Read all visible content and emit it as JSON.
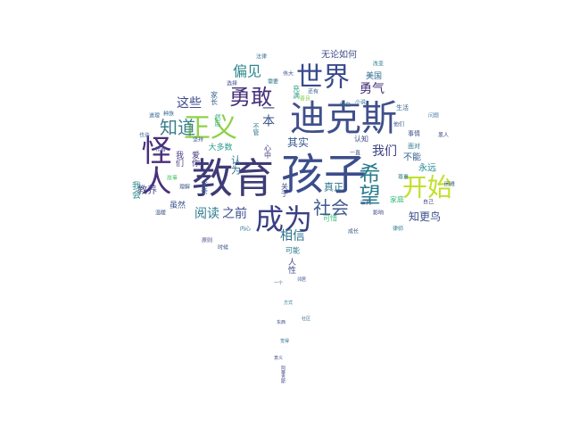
{
  "words": [
    {
      "text": "孩子",
      "color": "#3b4d8b"
    },
    {
      "text": "教育",
      "color": "#3e3b77"
    },
    {
      "text": "迪克斯",
      "color": "#404f8c"
    },
    {
      "text": "成为",
      "color": "#3a3f84"
    },
    {
      "text": "世界",
      "color": "#3a4a8d"
    },
    {
      "text": "勇敢",
      "color": "#46307a"
    },
    {
      "text": "正义",
      "color": "#8fd24a"
    },
    {
      "text": "怪人",
      "color": "#4a2f7b"
    },
    {
      "text": "开始",
      "color": "#c2df2b"
    },
    {
      "text": "希望",
      "color": "#2b7d8e"
    },
    {
      "text": "社会",
      "color": "#3f5a8e"
    },
    {
      "text": "知道",
      "color": "#3a7f8e"
    },
    {
      "text": "偏见",
      "color": "#2c868e"
    },
    {
      "text": "这些",
      "color": "#3e4989"
    },
    {
      "text": "勇气",
      "color": "#44307c"
    },
    {
      "text": "一本",
      "color": "#3b5289"
    },
    {
      "text": "相信",
      "color": "#2d708e"
    },
    {
      "text": "阅读",
      "color": "#2b7a8e"
    },
    {
      "text": "之前",
      "color": "#3c4f8c"
    },
    {
      "text": "我们",
      "color": "#3d3f7f"
    },
    {
      "text": "其实",
      "color": "#38598c"
    },
    {
      "text": "知更鸟",
      "color": "#3b528b"
    },
    {
      "text": "真正",
      "color": "#2c738e"
    },
    {
      "text": "教养",
      "color": "#414287"
    },
    {
      "text": "认为",
      "color": "#2e6e8e"
    },
    {
      "text": "不能",
      "color": "#36618d"
    },
    {
      "text": "永远",
      "color": "#23898e"
    },
    {
      "text": "无论如何",
      "color": "#414f8a"
    },
    {
      "text": "美国",
      "color": "#2f6b8e"
    },
    {
      "text": "虽然",
      "color": "#3b528b"
    },
    {
      "text": "可能",
      "color": "#29798e"
    },
    {
      "text": "人性",
      "color": "#3e4a89"
    },
    {
      "text": "家长",
      "color": "#36618d"
    },
    {
      "text": "大多数",
      "color": "#2a9c8a"
    },
    {
      "text": "我会",
      "color": "#2c8f8b"
    },
    {
      "text": "关于",
      "color": "#3e4c8a"
    },
    {
      "text": "认知",
      "color": "#3e4989"
    },
    {
      "text": "面对",
      "color": "#2a7b8e"
    },
    {
      "text": "我们",
      "color": "#433e85"
    },
    {
      "text": "爱你",
      "color": "#45357d"
    },
    {
      "text": "父亲",
      "color": "#3b5f8c"
    },
    {
      "text": "可惜",
      "color": "#3cbc74"
    },
    {
      "text": "家庭",
      "color": "#34b679"
    },
    {
      "text": "充满",
      "color": "#2e9e88"
    },
    {
      "text": "然后",
      "color": "#28ae80"
    },
    {
      "text": "不管",
      "color": "#2a768e"
    },
    {
      "text": "心中",
      "color": "#44397f"
    },
    {
      "text": "事情",
      "color": "#3b528b"
    },
    {
      "text": "生活",
      "color": "#33638d"
    },
    {
      "text": "作者",
      "color": "#3b528b"
    },
    {
      "text": "故事",
      "color": "#4fc369"
    },
    {
      "text": "小说",
      "color": "#2c718e"
    },
    {
      "text": "一直",
      "color": "#3b528b"
    },
    {
      "text": "影响",
      "color": "#3f478b"
    },
    {
      "text": "问题",
      "color": "#4f7fae"
    },
    {
      "text": "时候",
      "color": "#3a4d8a"
    },
    {
      "text": "还有",
      "color": "#36618d"
    },
    {
      "text": "需要",
      "color": "#2a768e"
    },
    {
      "text": "种族",
      "color": "#30698e"
    },
    {
      "text": "黑人",
      "color": "#3e4989"
    },
    {
      "text": "法律",
      "color": "#2f6b8e"
    },
    {
      "text": "律师",
      "color": "#2a788e"
    },
    {
      "text": "善良",
      "color": "#86d549"
    },
    {
      "text": "成长",
      "color": "#3b528b"
    },
    {
      "text": "道理",
      "color": "#32648e"
    },
    {
      "text": "自己",
      "color": "#3f4788"
    },
    {
      "text": "他们",
      "color": "#3a548c"
    },
    {
      "text": "内心",
      "color": "#2d708e"
    },
    {
      "text": "审判",
      "color": "#38598c"
    },
    {
      "text": "尊重",
      "color": "#2a788e"
    },
    {
      "text": "理解",
      "color": "#3b528b"
    },
    {
      "text": "一个",
      "color": "#32648e"
    },
    {
      "text": "方式",
      "color": "#29798e"
    },
    {
      "text": "东西",
      "color": "#3e4989"
    },
    {
      "text": "觉得",
      "color": "#2c718e"
    },
    {
      "text": "意义",
      "color": "#3a548c"
    },
    {
      "text": "温暖",
      "color": "#3b528b"
    },
    {
      "text": "也许",
      "color": "#2f6b8e"
    },
    {
      "text": "困难",
      "color": "#36618d"
    },
    {
      "text": "选择",
      "color": "#3e4989"
    },
    {
      "text": "改变",
      "color": "#2a788e"
    },
    {
      "text": "伟大",
      "color": "#3b528b"
    },
    {
      "text": "明白",
      "color": "#2d708e"
    },
    {
      "text": "坚持",
      "color": "#38598c"
    },
    {
      "text": "原则",
      "color": "#3f4788"
    },
    {
      "text": "邻居",
      "color": "#3a548c"
    },
    {
      "text": "阿蒂克斯",
      "color": "#3e4989"
    },
    {
      "text": "社区",
      "color": "#2f6b8e"
    }
  ]
}
